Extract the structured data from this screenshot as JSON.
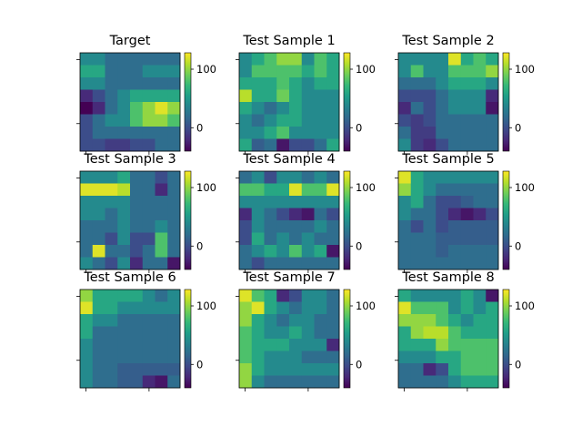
{
  "chart_data": {
    "type": "heatmap",
    "colormap": "viridis",
    "value_range": [
      -40,
      128
    ],
    "colorbar_ticks": [
      {
        "value": 100,
        "label": "100"
      },
      {
        "value": 0,
        "label": "0"
      }
    ],
    "panels": [
      {
        "title": "Target",
        "matrix": [
          [
            40,
            40,
            20,
            20,
            20,
            20,
            20,
            20
          ],
          [
            60,
            60,
            20,
            20,
            20,
            40,
            40,
            40
          ],
          [
            40,
            40,
            20,
            20,
            20,
            20,
            20,
            20
          ],
          [
            -20,
            0,
            20,
            40,
            60,
            60,
            60,
            60
          ],
          [
            -40,
            -20,
            20,
            40,
            80,
            100,
            120,
            100
          ],
          [
            0,
            20,
            40,
            40,
            80,
            100,
            100,
            80
          ],
          [
            0,
            20,
            20,
            20,
            20,
            20,
            20,
            20
          ],
          [
            0,
            0,
            -10,
            -10,
            0,
            0,
            20,
            20
          ]
        ]
      },
      {
        "title": "Test Sample 1",
        "matrix": [
          [
            40,
            60,
            80,
            100,
            100,
            40,
            80,
            60
          ],
          [
            40,
            80,
            80,
            80,
            80,
            60,
            80,
            60
          ],
          [
            60,
            60,
            60,
            80,
            60,
            40,
            60,
            60
          ],
          [
            110,
            60,
            60,
            90,
            60,
            40,
            40,
            40
          ],
          [
            60,
            40,
            20,
            40,
            60,
            40,
            40,
            40
          ],
          [
            40,
            20,
            40,
            60,
            60,
            40,
            40,
            40
          ],
          [
            40,
            40,
            60,
            80,
            40,
            40,
            40,
            40
          ],
          [
            60,
            10,
            20,
            -30,
            0,
            0,
            20,
            60
          ]
        ]
      },
      {
        "title": "Test Sample 2",
        "matrix": [
          [
            40,
            40,
            40,
            40,
            120,
            60,
            80,
            60
          ],
          [
            40,
            80,
            40,
            40,
            80,
            80,
            80,
            100
          ],
          [
            20,
            20,
            20,
            40,
            60,
            60,
            60,
            40
          ],
          [
            0,
            0,
            0,
            20,
            40,
            40,
            40,
            -20
          ],
          [
            -20,
            20,
            0,
            20,
            40,
            40,
            40,
            -30
          ],
          [
            0,
            -10,
            0,
            20,
            20,
            20,
            20,
            20
          ],
          [
            20,
            -10,
            -10,
            20,
            20,
            20,
            20,
            20
          ],
          [
            40,
            -10,
            -20,
            0,
            20,
            20,
            20,
            20
          ]
        ]
      },
      {
        "title": "Test Sample 3",
        "matrix": [
          [
            40,
            40,
            40,
            60,
            20,
            20,
            0,
            20
          ],
          [
            120,
            120,
            120,
            110,
            20,
            20,
            -20,
            20
          ],
          [
            40,
            40,
            40,
            40,
            20,
            20,
            20,
            20
          ],
          [
            40,
            40,
            20,
            40,
            20,
            20,
            20,
            20
          ],
          [
            20,
            20,
            20,
            40,
            20,
            20,
            40,
            20
          ],
          [
            20,
            20,
            0,
            40,
            0,
            0,
            80,
            20
          ],
          [
            20,
            120,
            20,
            20,
            0,
            20,
            80,
            20
          ],
          [
            40,
            20,
            0,
            40,
            -20,
            20,
            20,
            -30
          ]
        ]
      },
      {
        "title": "Test Sample 4",
        "matrix": [
          [
            20,
            40,
            0,
            40,
            40,
            20,
            40,
            20
          ],
          [
            80,
            80,
            60,
            60,
            120,
            80,
            80,
            120
          ],
          [
            40,
            40,
            40,
            40,
            40,
            40,
            40,
            40
          ],
          [
            -20,
            40,
            20,
            0,
            -20,
            -30,
            20,
            0
          ],
          [
            0,
            40,
            20,
            20,
            20,
            20,
            40,
            20
          ],
          [
            0,
            60,
            20,
            40,
            20,
            40,
            20,
            20
          ],
          [
            20,
            40,
            60,
            40,
            80,
            40,
            60,
            -30
          ],
          [
            20,
            0,
            20,
            20,
            20,
            20,
            20,
            20
          ]
        ]
      },
      {
        "title": "Test Sample 5",
        "matrix": [
          [
            120,
            60,
            40,
            40,
            40,
            40,
            40,
            40
          ],
          [
            100,
            60,
            40,
            20,
            20,
            20,
            20,
            20
          ],
          [
            40,
            60,
            20,
            0,
            0,
            10,
            20,
            20
          ],
          [
            40,
            20,
            20,
            0,
            -20,
            -30,
            -20,
            0
          ],
          [
            20,
            0,
            20,
            0,
            10,
            10,
            10,
            10
          ],
          [
            20,
            20,
            20,
            10,
            10,
            10,
            10,
            10
          ],
          [
            20,
            20,
            20,
            10,
            20,
            20,
            20,
            20
          ],
          [
            20,
            20,
            20,
            20,
            20,
            20,
            20,
            20
          ]
        ]
      },
      {
        "title": "Test Sample 6",
        "matrix": [
          [
            100,
            60,
            60,
            60,
            60,
            40,
            20,
            40
          ],
          [
            120,
            60,
            60,
            40,
            40,
            40,
            40,
            40
          ],
          [
            60,
            40,
            40,
            20,
            20,
            20,
            20,
            20
          ],
          [
            60,
            20,
            20,
            20,
            20,
            20,
            20,
            20
          ],
          [
            40,
            20,
            20,
            20,
            20,
            20,
            20,
            20
          ],
          [
            40,
            20,
            20,
            20,
            20,
            20,
            20,
            20
          ],
          [
            40,
            20,
            20,
            10,
            10,
            10,
            10,
            10
          ],
          [
            40,
            20,
            20,
            10,
            10,
            -20,
            -30,
            20
          ]
        ]
      },
      {
        "title": "Test Sample 7",
        "matrix": [
          [
            120,
            80,
            60,
            -20,
            0,
            40,
            40,
            20
          ],
          [
            100,
            120,
            60,
            40,
            20,
            40,
            40,
            20
          ],
          [
            100,
            60,
            40,
            20,
            40,
            40,
            20,
            20
          ],
          [
            80,
            60,
            40,
            40,
            60,
            40,
            20,
            20
          ],
          [
            80,
            60,
            60,
            60,
            40,
            40,
            40,
            -20
          ],
          [
            80,
            60,
            40,
            40,
            40,
            20,
            20,
            20
          ],
          [
            100,
            60,
            40,
            40,
            40,
            40,
            40,
            40
          ],
          [
            100,
            40,
            20,
            20,
            20,
            20,
            20,
            20
          ]
        ]
      },
      {
        "title": "Test Sample 8",
        "matrix": [
          [
            60,
            40,
            40,
            40,
            40,
            60,
            40,
            -30
          ],
          [
            120,
            80,
            80,
            80,
            40,
            60,
            40,
            60
          ],
          [
            100,
            100,
            100,
            80,
            60,
            40,
            60,
            60
          ],
          [
            60,
            100,
            110,
            110,
            80,
            60,
            60,
            60
          ],
          [
            60,
            60,
            60,
            100,
            80,
            80,
            80,
            80
          ],
          [
            40,
            40,
            40,
            60,
            60,
            80,
            80,
            80
          ],
          [
            20,
            20,
            -20,
            0,
            60,
            80,
            80,
            80
          ],
          [
            20,
            20,
            20,
            20,
            40,
            60,
            60,
            60
          ]
        ]
      }
    ]
  }
}
